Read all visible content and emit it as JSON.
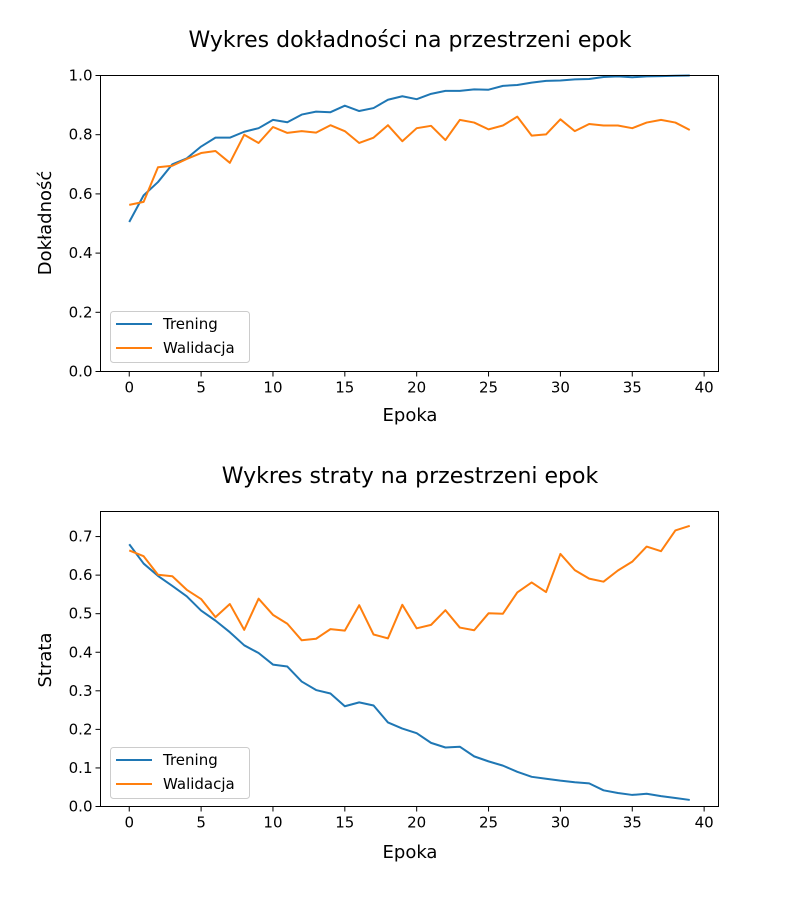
{
  "chart_data": [
    {
      "type": "line",
      "title": "Wykres dokładności na przestrzeni epok",
      "xlabel": "Epoka",
      "ylabel": "Dokładność",
      "xlim": [
        -2,
        41
      ],
      "ylim": [
        0.0,
        1.0
      ],
      "xticks": [
        0,
        5,
        10,
        15,
        20,
        25,
        30,
        35,
        40
      ],
      "yticks": [
        0.0,
        0.2,
        0.4,
        0.6,
        0.8,
        1.0
      ],
      "ytick_labels": [
        "0.0",
        "0.2",
        "0.4",
        "0.6",
        "0.8",
        "1.0"
      ],
      "legend_position": "lower-left",
      "x": [
        0,
        1,
        2,
        3,
        4,
        5,
        6,
        7,
        8,
        9,
        10,
        11,
        12,
        13,
        14,
        15,
        16,
        17,
        18,
        19,
        20,
        21,
        22,
        23,
        24,
        25,
        26,
        27,
        28,
        29,
        30,
        31,
        32,
        33,
        34,
        35,
        36,
        37,
        38,
        39
      ],
      "series": [
        {
          "name": "Trening",
          "color": "#1f77b4",
          "values": [
            0.505,
            0.595,
            0.64,
            0.7,
            0.72,
            0.76,
            0.79,
            0.79,
            0.81,
            0.822,
            0.85,
            0.842,
            0.868,
            0.878,
            0.876,
            0.898,
            0.88,
            0.89,
            0.918,
            0.93,
            0.92,
            0.938,
            0.948,
            0.948,
            0.953,
            0.952,
            0.965,
            0.968,
            0.976,
            0.982,
            0.983,
            0.987,
            0.988,
            0.995,
            0.997,
            0.994,
            0.997,
            0.998,
            0.999,
            1.0
          ]
        },
        {
          "name": "Walidacja",
          "color": "#ff7f0e",
          "values": [
            0.563,
            0.573,
            0.69,
            0.695,
            0.718,
            0.738,
            0.745,
            0.705,
            0.8,
            0.772,
            0.826,
            0.806,
            0.812,
            0.807,
            0.832,
            0.812,
            0.772,
            0.79,
            0.832,
            0.778,
            0.822,
            0.83,
            0.782,
            0.85,
            0.841,
            0.818,
            0.831,
            0.861,
            0.797,
            0.801,
            0.852,
            0.812,
            0.836,
            0.831,
            0.831,
            0.822,
            0.841,
            0.85,
            0.841,
            0.816
          ]
        }
      ]
    },
    {
      "type": "line",
      "title": "Wykres straty na przestrzeni epok",
      "xlabel": "Epoka",
      "ylabel": "Strata",
      "xlim": [
        -2,
        41
      ],
      "ylim": [
        0.0,
        0.765
      ],
      "xticks": [
        0,
        5,
        10,
        15,
        20,
        25,
        30,
        35,
        40
      ],
      "yticks": [
        0.0,
        0.1,
        0.2,
        0.3,
        0.4,
        0.5,
        0.6,
        0.7
      ],
      "ytick_labels": [
        "0.0",
        "0.1",
        "0.2",
        "0.3",
        "0.4",
        "0.5",
        "0.6",
        "0.7"
      ],
      "legend_position": "lower-left",
      "x": [
        0,
        1,
        2,
        3,
        4,
        5,
        6,
        7,
        8,
        9,
        10,
        11,
        12,
        13,
        14,
        15,
        16,
        17,
        18,
        19,
        20,
        21,
        22,
        23,
        24,
        25,
        26,
        27,
        28,
        29,
        30,
        31,
        32,
        33,
        34,
        35,
        36,
        37,
        38,
        39
      ],
      "series": [
        {
          "name": "Trening",
          "color": "#1f77b4",
          "values": [
            0.68,
            0.63,
            0.598,
            0.572,
            0.545,
            0.508,
            0.482,
            0.452,
            0.418,
            0.398,
            0.368,
            0.363,
            0.324,
            0.302,
            0.293,
            0.26,
            0.27,
            0.262,
            0.218,
            0.202,
            0.19,
            0.165,
            0.153,
            0.155,
            0.13,
            0.117,
            0.106,
            0.09,
            0.077,
            0.072,
            0.067,
            0.063,
            0.06,
            0.042,
            0.035,
            0.03,
            0.033,
            0.027,
            0.022,
            0.017
          ]
        },
        {
          "name": "Walidacja",
          "color": "#ff7f0e",
          "values": [
            0.664,
            0.649,
            0.601,
            0.597,
            0.562,
            0.538,
            0.491,
            0.525,
            0.458,
            0.539,
            0.497,
            0.474,
            0.431,
            0.435,
            0.46,
            0.456,
            0.522,
            0.446,
            0.436,
            0.523,
            0.462,
            0.471,
            0.509,
            0.464,
            0.457,
            0.501,
            0.5,
            0.555,
            0.581,
            0.556,
            0.655,
            0.613,
            0.591,
            0.583,
            0.612,
            0.635,
            0.674,
            0.662,
            0.716,
            0.728
          ]
        }
      ]
    }
  ]
}
